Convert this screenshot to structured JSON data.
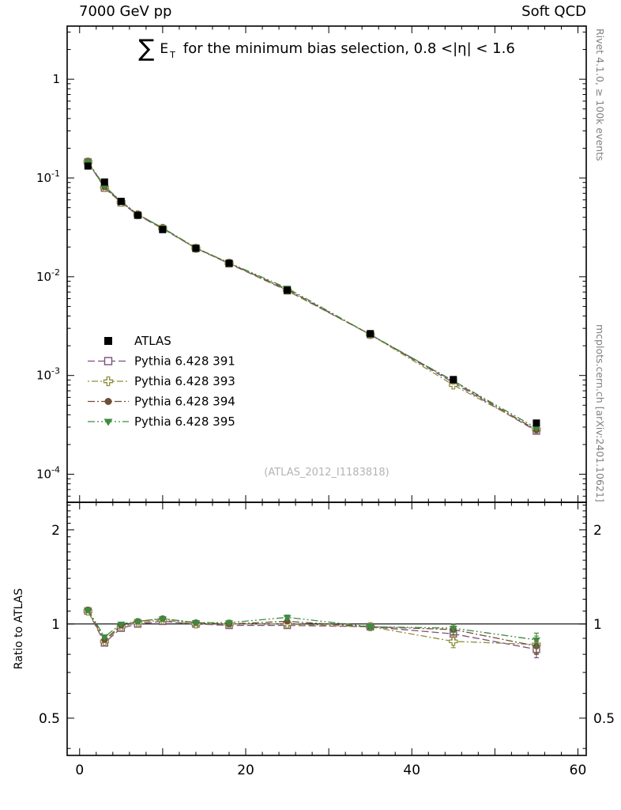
{
  "header": {
    "left": "7000 GeV pp",
    "right": "Soft QCD"
  },
  "title": {
    "sum": "∑",
    "observable": "E",
    "observable_sub": "T",
    "rest": "for the minimum bias selection, 0.8 <|η| < 1.6"
  },
  "side": {
    "top": "Rivet 4.1.0, ≥ 100k events",
    "bottom": "mcplots.cern.ch [arXiv:2401.10621]"
  },
  "watermark": "(ATLAS_2012_I1183818)",
  "ratio_axis_label": "Ratio to ATLAS",
  "colors": {
    "atlas": "#000000",
    "p391": "#7d4e7d",
    "p393": "#8f8f3d",
    "p394": "#6e4e37",
    "p395": "#3d8c40",
    "frame": "#000000",
    "watermark": "#b4b4b4",
    "side_text": "#808080"
  },
  "chart_data": {
    "type": "scatter",
    "title": "Sum ET for the minimum bias selection, 0.8 <|eta| < 1.6",
    "x": [
      1,
      3,
      5,
      7,
      10,
      14,
      18,
      25,
      35,
      45,
      55
    ],
    "xlim": [
      -1.5,
      61
    ],
    "xticks_labeled": [
      0,
      20,
      40,
      60
    ],
    "xticks_major": [
      0,
      10,
      20,
      30,
      40,
      50,
      60
    ],
    "xtick_minor_step": 2,
    "main_axis": {
      "scale": "log",
      "ylim": [
        5.2e-05,
        3.45
      ],
      "yticks": [
        1,
        0.1,
        0.01,
        0.001,
        0.0001
      ]
    },
    "ratio_axis": {
      "scale": "log",
      "ylim": [
        0.38,
        2.45
      ],
      "yticks": [
        0.5,
        1,
        2
      ]
    },
    "legend_position": "left-lower-inside-main",
    "grid": false,
    "series": [
      {
        "name": "ATLAS",
        "marker": "square-filled",
        "color_key": "atlas",
        "line": "none",
        "values": [
          0.132,
          0.091,
          0.058,
          0.042,
          0.03,
          0.0194,
          0.0137,
          0.0073,
          0.00265,
          0.00091,
          0.00033
        ]
      },
      {
        "name": "Pythia 6.428 391",
        "marker": "square-open",
        "color_key": "p391",
        "dash": "9 4",
        "ratio": [
          1.1,
          0.87,
          0.97,
          1.0,
          1.02,
          1.0,
          0.99,
          0.99,
          0.98,
          0.93,
          0.83
        ],
        "ratio_err": [
          0.01,
          0.012,
          0.01,
          0.01,
          0.01,
          0.012,
          0.015,
          0.018,
          0.02,
          0.035,
          0.05
        ]
      },
      {
        "name": "Pythia 6.428 393",
        "marker": "cross-open",
        "color_key": "p393",
        "dash": "2 3 8 3",
        "ratio": [
          1.1,
          0.88,
          0.98,
          1.01,
          1.03,
          1.0,
          1.0,
          1.0,
          0.98,
          0.88,
          0.86
        ],
        "ratio_err": [
          0.01,
          0.012,
          0.01,
          0.01,
          0.01,
          0.012,
          0.015,
          0.018,
          0.02,
          0.04,
          0.055
        ]
      },
      {
        "name": "Pythia 6.428 394",
        "marker": "circle-filled",
        "color_key": "p394",
        "dash": "9 3 2 3",
        "ratio": [
          1.11,
          0.89,
          0.99,
          1.02,
          1.04,
          1.01,
          1.0,
          1.02,
          0.98,
          0.96,
          0.85
        ],
        "ratio_err": [
          0.01,
          0.012,
          0.01,
          0.01,
          0.01,
          0.012,
          0.015,
          0.018,
          0.02,
          0.035,
          0.05
        ]
      },
      {
        "name": "Pythia 6.428 395",
        "marker": "triangle-down-filled",
        "color_key": "p395",
        "dash": "9 3 2 3 2 3",
        "ratio": [
          1.11,
          0.91,
          1.0,
          1.02,
          1.04,
          1.01,
          1.01,
          1.05,
          0.98,
          0.97,
          0.89
        ],
        "ratio_err": [
          0.01,
          0.012,
          0.01,
          0.01,
          0.01,
          0.012,
          0.015,
          0.018,
          0.02,
          0.03,
          0.045
        ]
      }
    ]
  }
}
